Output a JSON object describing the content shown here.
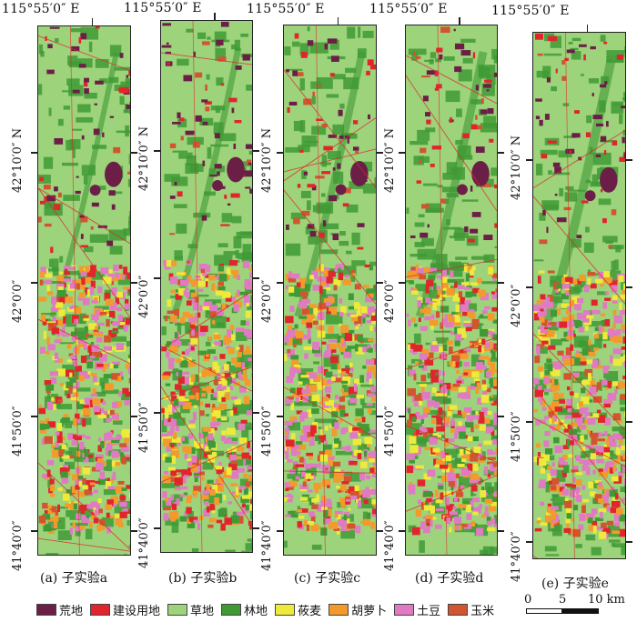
{
  "longitude_label": "115°55′0″ E",
  "latitude_labels": [
    "42°10′0″ N",
    "42°0′0″",
    "41°50′0″",
    "41°40′0″"
  ],
  "panels": [
    {
      "caption": "(a) 子实验a",
      "variant": 0
    },
    {
      "caption": "(b) 子实验b",
      "variant": 1
    },
    {
      "caption": "(c) 子实验c",
      "variant": 2
    },
    {
      "caption": "(d) 子实验d",
      "variant": 3
    },
    {
      "caption": "(e) 子实验e",
      "variant": 4
    }
  ],
  "legend": [
    {
      "label": "荒地",
      "color": "#6b1f47"
    },
    {
      "label": "建设用地",
      "color": "#e0262c"
    },
    {
      "label": "草地",
      "color": "#9dd37b"
    },
    {
      "label": "林地",
      "color": "#3f9a35"
    },
    {
      "label": "莜麦",
      "color": "#eeea3a"
    },
    {
      "label": "胡萝卜",
      "color": "#f39a2c"
    },
    {
      "label": "土豆",
      "color": "#e07ac2"
    },
    {
      "label": "玉米",
      "color": "#d1552e"
    }
  ],
  "scale_bar": {
    "labels": [
      "0",
      "5",
      "10 km"
    ]
  }
}
